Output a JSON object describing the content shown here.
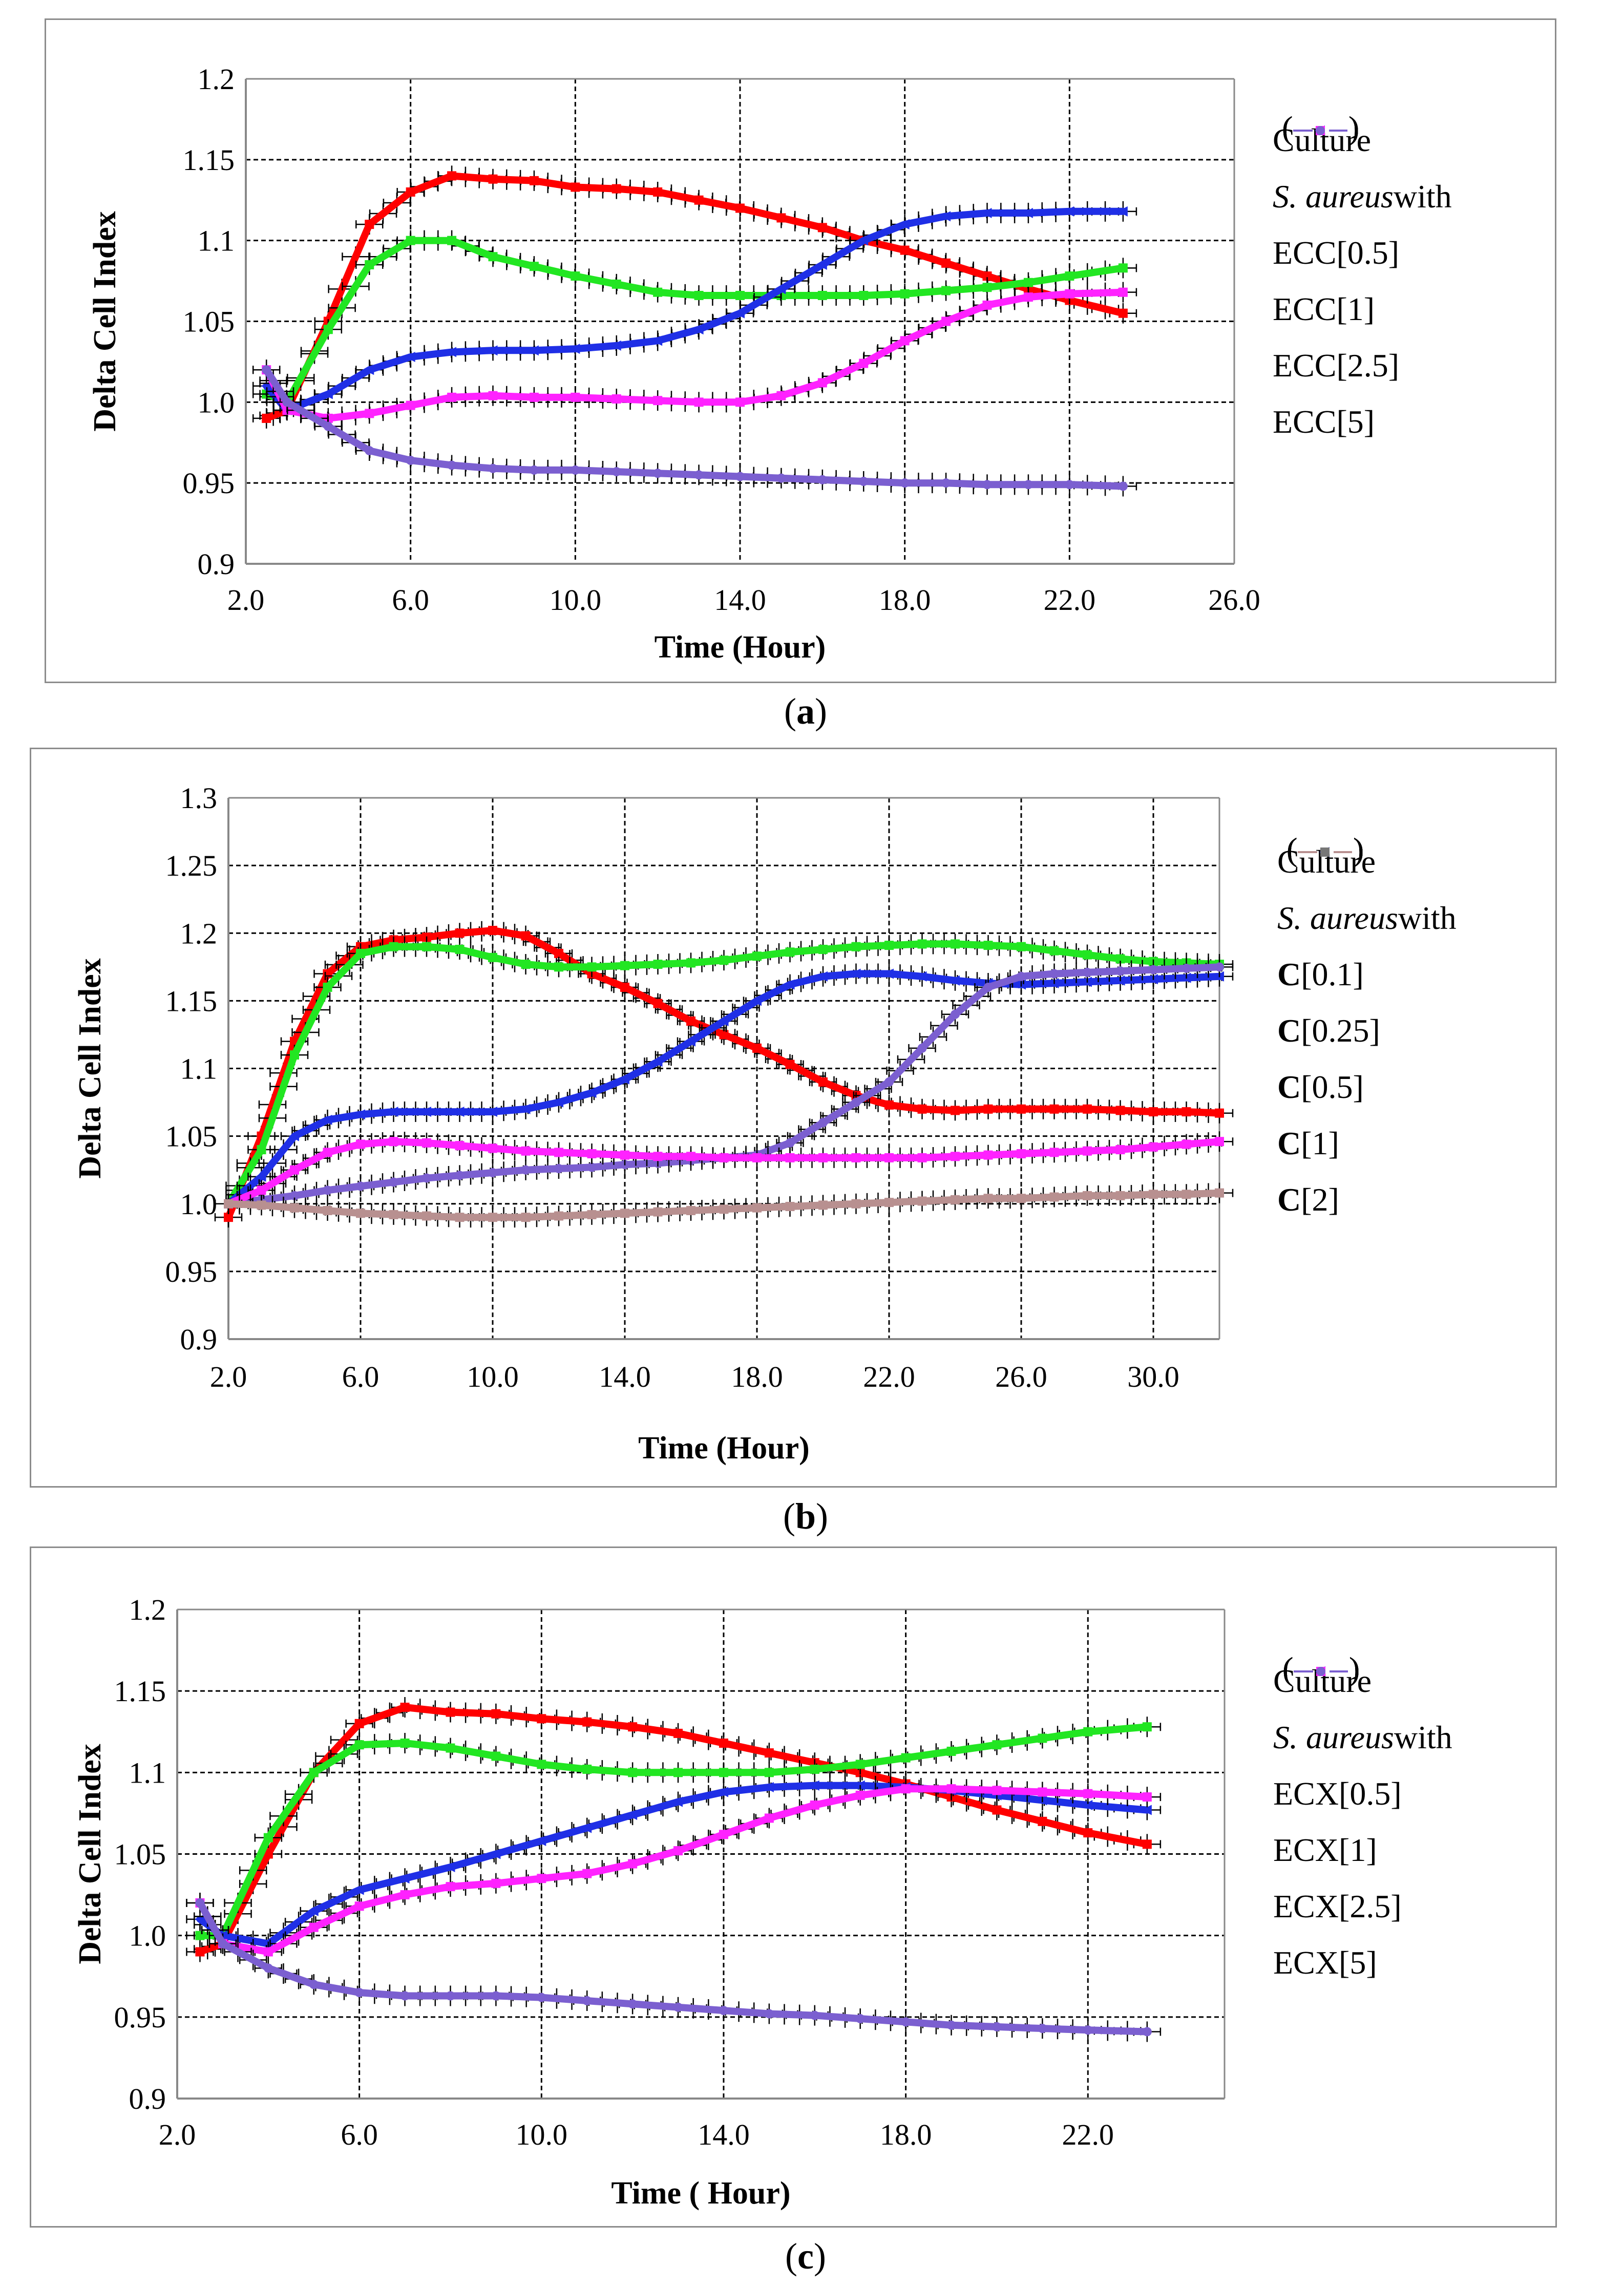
{
  "colors": {
    "culture": "#ff0000",
    "green": "#22e622",
    "blue": "#1f2fe6",
    "magenta": "#ff22ff",
    "purple": "#7b5fd0",
    "gray": "#b89090"
  },
  "chart_data": [
    {
      "type": "line",
      "caption": "a",
      "xlabel": "Time (Hour)",
      "ylabel": "Delta Cell Index",
      "xlim": [
        2.0,
        26.0
      ],
      "ylim": [
        0.9,
        1.2
      ],
      "xticks": [
        "2.0",
        "6.0",
        "10.0",
        "14.0",
        "18.0",
        "22.0",
        "26.0"
      ],
      "yticks": [
        "0.9",
        "0.95",
        "1.0",
        "1.05",
        "1.1",
        "1.15",
        "1.2"
      ],
      "grid": true,
      "legend_position": "right",
      "legend": [
        {
          "prefix": "Culture",
          "bold": "",
          "conc": "",
          "marker": "square",
          "color_key": "culture"
        },
        {
          "prefix": "S. aureus",
          "suffix": " with",
          "italic": true,
          "header": true
        },
        {
          "prefix": "ECC",
          "conc": "[0.5]",
          "marker": "square",
          "color_key": "green"
        },
        {
          "prefix": "ECC",
          "conc": "[1]",
          "marker": "triangle-left",
          "color_key": "blue"
        },
        {
          "prefix": "ECC",
          "conc": "[2.5]",
          "marker": "square",
          "color_key": "magenta"
        },
        {
          "prefix": "ECC",
          "conc": "[5]",
          "marker": "dot",
          "color_key": "purple"
        }
      ],
      "x": [
        2.5,
        3,
        4,
        5,
        6,
        7,
        8,
        9,
        10,
        11,
        12,
        13,
        14,
        15,
        16,
        17,
        18,
        19,
        20,
        21,
        22,
        23.3
      ],
      "series": [
        {
          "color_key": "culture",
          "marker": "square",
          "values": [
            0.99,
            0.995,
            1.05,
            1.11,
            1.13,
            1.14,
            1.138,
            1.137,
            1.133,
            1.132,
            1.13,
            1.125,
            1.12,
            1.114,
            1.108,
            1.1,
            1.094,
            1.086,
            1.078,
            1.07,
            1.063,
            1.055
          ]
        },
        {
          "color_key": "green",
          "marker": "square",
          "values": [
            1.005,
            1.0,
            1.045,
            1.085,
            1.1,
            1.1,
            1.09,
            1.084,
            1.078,
            1.073,
            1.068,
            1.066,
            1.066,
            1.066,
            1.066,
            1.066,
            1.067,
            1.069,
            1.071,
            1.074,
            1.078,
            1.083
          ]
        },
        {
          "color_key": "blue",
          "marker": "triangle-left",
          "values": [
            1.01,
            0.995,
            1.005,
            1.02,
            1.028,
            1.031,
            1.032,
            1.032,
            1.033,
            1.035,
            1.038,
            1.045,
            1.055,
            1.07,
            1.085,
            1.1,
            1.11,
            1.115,
            1.117,
            1.117,
            1.118,
            1.118
          ]
        },
        {
          "color_key": "magenta",
          "marker": "square",
          "values": [
            1.02,
            0.995,
            0.99,
            0.993,
            0.998,
            1.003,
            1.004,
            1.003,
            1.003,
            1.002,
            1.001,
            1.0,
            1.0,
            1.004,
            1.012,
            1.024,
            1.038,
            1.05,
            1.06,
            1.065,
            1.067,
            1.068
          ]
        },
        {
          "color_key": "purple",
          "marker": "dot",
          "values": [
            1.02,
            1.0,
            0.985,
            0.97,
            0.964,
            0.961,
            0.959,
            0.958,
            0.958,
            0.957,
            0.956,
            0.955,
            0.954,
            0.953,
            0.952,
            0.951,
            0.95,
            0.95,
            0.949,
            0.949,
            0.949,
            0.948
          ]
        }
      ]
    },
    {
      "type": "line",
      "caption": "b",
      "xlabel": "Time (Hour)",
      "ylabel": "Delta Cell Index",
      "xlim": [
        2.0,
        32.0
      ],
      "ylim": [
        0.9,
        1.3
      ],
      "xticks": [
        "2.0",
        "6.0",
        "10.0",
        "14.0",
        "18.0",
        "22.0",
        "26.0",
        "30.0"
      ],
      "yticks": [
        "0.9",
        "0.95",
        "1.0",
        "1.05",
        "1.1",
        "1.15",
        "1.2",
        "1.25",
        "1.3"
      ],
      "grid": true,
      "legend_position": "right",
      "legend": [
        {
          "prefix": "Culture",
          "conc": "",
          "marker": "square",
          "color_key": "culture"
        },
        {
          "prefix": "S. aureus",
          "suffix": " with",
          "italic": true,
          "header": true
        },
        {
          "prefix": "C",
          "bold_prefix": true,
          "conc": "[0.1]",
          "marker": "square",
          "color_key": "green"
        },
        {
          "prefix": "C",
          "bold_prefix": true,
          "conc": "[0.25]",
          "marker": "triangle-left",
          "color_key": "blue"
        },
        {
          "prefix": "C",
          "bold_prefix": true,
          "conc": "[0.5]",
          "marker": "dot",
          "color_key": "purple"
        },
        {
          "prefix": "C",
          "bold_prefix": true,
          "conc": "[1]",
          "marker": "square",
          "color_key": "magenta"
        },
        {
          "prefix": "C",
          "bold_prefix": true,
          "conc": "[2]",
          "marker": "square",
          "color_key": "gray",
          "marker_color": "#777777"
        }
      ],
      "x": [
        2,
        3,
        4,
        5,
        6,
        7,
        8,
        9,
        10,
        11,
        12,
        13,
        14,
        15,
        16,
        17,
        18,
        19,
        20,
        21,
        22,
        23,
        24,
        25,
        26,
        27,
        28,
        29,
        30,
        31,
        32
      ],
      "series": [
        {
          "color_key": "culture",
          "marker": "square",
          "values": [
            0.99,
            1.05,
            1.12,
            1.17,
            1.19,
            1.195,
            1.197,
            1.2,
            1.202,
            1.198,
            1.185,
            1.17,
            1.16,
            1.148,
            1.135,
            1.125,
            1.115,
            1.103,
            1.09,
            1.08,
            1.073,
            1.07,
            1.069,
            1.07,
            1.07,
            1.07,
            1.07,
            1.069,
            1.068,
            1.068,
            1.067
          ]
        },
        {
          "color_key": "green",
          "marker": "square",
          "values": [
            1.0,
            1.04,
            1.11,
            1.16,
            1.185,
            1.19,
            1.19,
            1.188,
            1.182,
            1.177,
            1.175,
            1.175,
            1.176,
            1.177,
            1.178,
            1.18,
            1.183,
            1.186,
            1.188,
            1.19,
            1.191,
            1.192,
            1.192,
            1.191,
            1.19,
            1.187,
            1.184,
            1.181,
            1.179,
            1.178,
            1.177
          ]
        },
        {
          "color_key": "blue",
          "marker": "triangle-left",
          "values": [
            1.0,
            1.02,
            1.05,
            1.062,
            1.066,
            1.068,
            1.068,
            1.068,
            1.068,
            1.07,
            1.075,
            1.082,
            1.092,
            1.105,
            1.12,
            1.135,
            1.15,
            1.162,
            1.168,
            1.17,
            1.17,
            1.168,
            1.165,
            1.163,
            1.162,
            1.163,
            1.164,
            1.165,
            1.166,
            1.167,
            1.168
          ]
        },
        {
          "color_key": "purple",
          "marker": "dot",
          "values": [
            1.0,
            1.003,
            1.006,
            1.01,
            1.013,
            1.016,
            1.019,
            1.021,
            1.023,
            1.025,
            1.026,
            1.027,
            1.029,
            1.03,
            1.032,
            1.034,
            1.036,
            1.045,
            1.06,
            1.075,
            1.09,
            1.115,
            1.14,
            1.16,
            1.168,
            1.17,
            1.171,
            1.172,
            1.173,
            1.174,
            1.175
          ]
        },
        {
          "color_key": "magenta",
          "marker": "square",
          "values": [
            1.0,
            1.01,
            1.025,
            1.038,
            1.044,
            1.046,
            1.045,
            1.043,
            1.041,
            1.039,
            1.038,
            1.037,
            1.036,
            1.035,
            1.035,
            1.034,
            1.034,
            1.034,
            1.034,
            1.034,
            1.034,
            1.034,
            1.035,
            1.036,
            1.037,
            1.038,
            1.039,
            1.04,
            1.042,
            1.044,
            1.046
          ]
        },
        {
          "color_key": "gray",
          "marker": "square",
          "values": [
            1.0,
            0.999,
            0.997,
            0.995,
            0.993,
            0.992,
            0.991,
            0.99,
            0.99,
            0.99,
            0.991,
            0.992,
            0.993,
            0.994,
            0.995,
            0.996,
            0.997,
            0.998,
            0.999,
            1.0,
            1.001,
            1.002,
            1.003,
            1.004,
            1.004,
            1.005,
            1.006,
            1.006,
            1.007,
            1.007,
            1.008
          ]
        }
      ]
    },
    {
      "type": "line",
      "caption": "c",
      "xlabel": "Time ( Hour)",
      "ylabel": "Delta Cell Index",
      "xlim": [
        2.0,
        25.0
      ],
      "ylim": [
        0.9,
        1.2
      ],
      "xticks": [
        "2.0",
        "6.0",
        "10.0",
        "14.0",
        "18.0",
        "22.0"
      ],
      "yticks": [
        "0.9",
        "0.95",
        "1.0",
        "1.05",
        "1.1",
        "1.15",
        "1.2"
      ],
      "grid": true,
      "legend_position": "right",
      "legend": [
        {
          "prefix": "Culture",
          "conc": "",
          "marker": "square",
          "color_key": "culture"
        },
        {
          "prefix": "S. aureus",
          "suffix": " with",
          "italic": true,
          "header": true
        },
        {
          "prefix": "ECX",
          "conc": "[0.5]",
          "marker": "square",
          "color_key": "green"
        },
        {
          "prefix": "ECX",
          "conc": "[1]",
          "marker": "triangle-left",
          "color_key": "blue"
        },
        {
          "prefix": "ECX",
          "conc": "[2.5]",
          "marker": "square",
          "color_key": "magenta"
        },
        {
          "prefix": "ECX",
          "conc": "[5]",
          "marker": "dot",
          "color_key": "purple"
        }
      ],
      "x": [
        2.5,
        3,
        4,
        5,
        6,
        7,
        8,
        9,
        10,
        11,
        12,
        13,
        14,
        15,
        16,
        17,
        18,
        19,
        20,
        21,
        22,
        23.3
      ],
      "series": [
        {
          "color_key": "culture",
          "marker": "square",
          "values": [
            0.99,
            0.995,
            1.05,
            1.1,
            1.13,
            1.14,
            1.137,
            1.136,
            1.133,
            1.131,
            1.128,
            1.124,
            1.118,
            1.112,
            1.106,
            1.1,
            1.093,
            1.085,
            1.077,
            1.07,
            1.063,
            1.056
          ]
        },
        {
          "color_key": "green",
          "marker": "square",
          "values": [
            1.0,
            1.0,
            1.06,
            1.1,
            1.117,
            1.118,
            1.115,
            1.11,
            1.105,
            1.102,
            1.1,
            1.1,
            1.1,
            1.1,
            1.102,
            1.105,
            1.109,
            1.113,
            1.117,
            1.121,
            1.125,
            1.128
          ]
        },
        {
          "color_key": "blue",
          "marker": "triangle-left",
          "values": [
            1.01,
            1.0,
            0.995,
            1.015,
            1.028,
            1.035,
            1.042,
            1.05,
            1.058,
            1.066,
            1.074,
            1.082,
            1.088,
            1.091,
            1.092,
            1.092,
            1.091,
            1.089,
            1.086,
            1.083,
            1.08,
            1.077
          ]
        },
        {
          "color_key": "magenta",
          "marker": "square",
          "values": [
            1.02,
            0.995,
            0.99,
            1.005,
            1.018,
            1.025,
            1.03,
            1.032,
            1.035,
            1.038,
            1.044,
            1.052,
            1.062,
            1.072,
            1.08,
            1.086,
            1.09,
            1.09,
            1.089,
            1.088,
            1.087,
            1.085
          ]
        },
        {
          "color_key": "purple",
          "marker": "dot",
          "values": [
            1.02,
            0.995,
            0.98,
            0.97,
            0.965,
            0.963,
            0.963,
            0.963,
            0.962,
            0.96,
            0.958,
            0.956,
            0.954,
            0.952,
            0.951,
            0.949,
            0.947,
            0.945,
            0.944,
            0.943,
            0.942,
            0.941
          ]
        }
      ]
    }
  ]
}
